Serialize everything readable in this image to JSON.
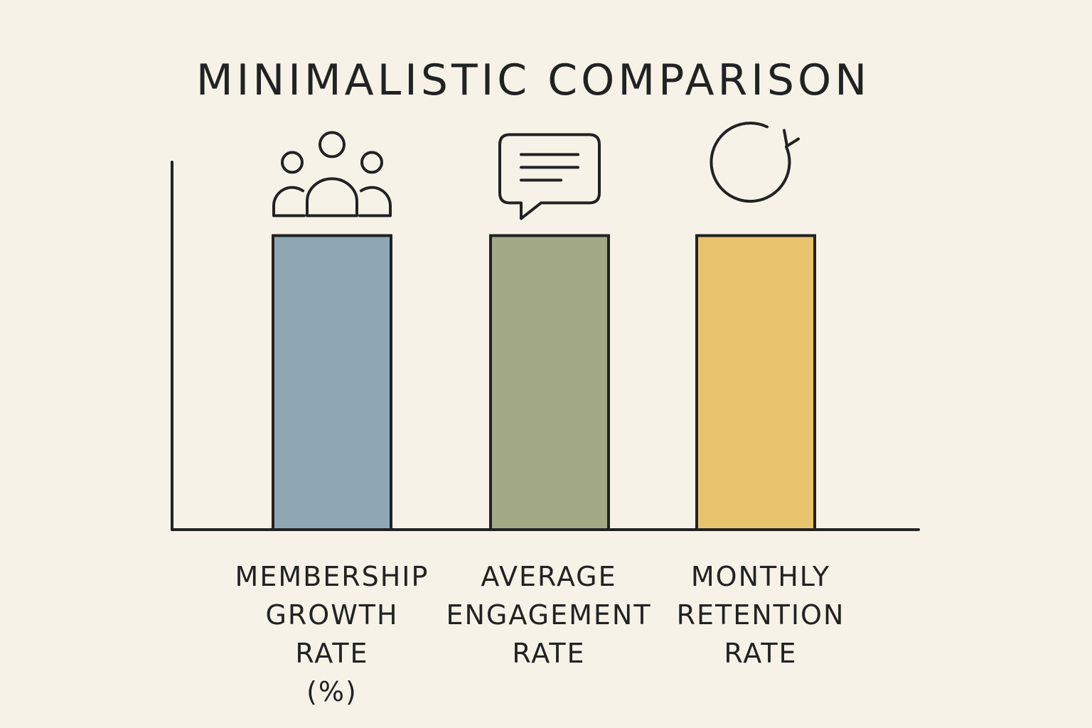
{
  "chart_data": {
    "type": "bar",
    "title": "MINIMALISTIC COMPARISON",
    "categories": [
      "MEMBERSHIP\nGROWTH RATE\n(%)",
      "AVERAGE\nENGAGEMENT\nRATE",
      "MONTHLY\nRETENTION\nRATE"
    ],
    "values": [
      1,
      1,
      1
    ],
    "ylim": [
      0,
      1.25
    ],
    "grid": false,
    "legend": "none",
    "colors": [
      "#8ea7b2",
      "#a3a886",
      "#e8c46e"
    ],
    "icons": [
      "people-group-icon",
      "chat-bubble-icon",
      "refresh-icon"
    ]
  }
}
